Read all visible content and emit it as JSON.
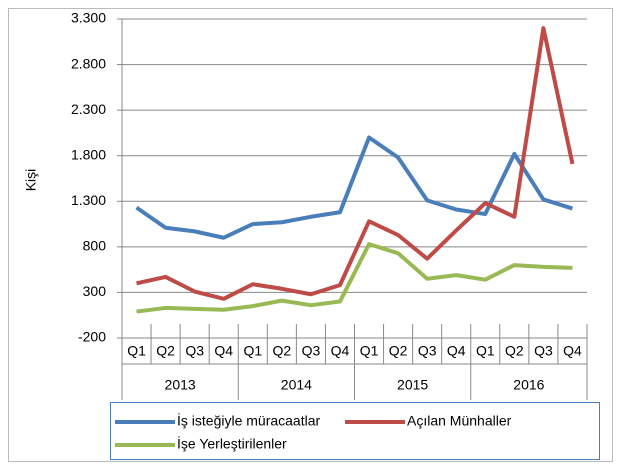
{
  "chart_data": {
    "type": "line",
    "y_label": "Kişi",
    "categories": [
      "Q1",
      "Q2",
      "Q3",
      "Q4",
      "Q1",
      "Q2",
      "Q3",
      "Q4",
      "Q1",
      "Q2",
      "Q3",
      "Q4",
      "Q1",
      "Q2",
      "Q3",
      "Q4"
    ],
    "category_groups": [
      "2013",
      "2014",
      "2015",
      "2016"
    ],
    "series": [
      {
        "name": "İş isteğiyle müracaatlar",
        "color": "#4a7ebb",
        "values": [
          1230,
          1010,
          970,
          900,
          1050,
          1070,
          1130,
          1180,
          2000,
          1780,
          1310,
          1210,
          1160,
          1820,
          1320,
          1220
        ]
      },
      {
        "name": "Açılan Münhaller",
        "color": "#be4b48",
        "values": [
          400,
          470,
          310,
          230,
          390,
          340,
          280,
          380,
          1080,
          930,
          670,
          980,
          1280,
          1130,
          3200,
          1710
        ]
      },
      {
        "name": "İşe Yerleştirilenler",
        "color": "#98b954",
        "values": [
          90,
          130,
          120,
          110,
          150,
          210,
          160,
          200,
          830,
          730,
          450,
          490,
          440,
          600,
          580,
          570
        ]
      }
    ],
    "ylim": [
      -200,
      3300
    ],
    "yticks": [
      -200,
      300,
      800,
      {
        "value": 1300,
        "label": "1.300"
      },
      {
        "value": 1800,
        "label": "1.800"
      },
      {
        "value": 2300,
        "label": "2.300"
      },
      {
        "value": 2800,
        "label": "2.800"
      },
      {
        "value": 3300,
        "label": "3.300"
      }
    ],
    "grid": true
  }
}
